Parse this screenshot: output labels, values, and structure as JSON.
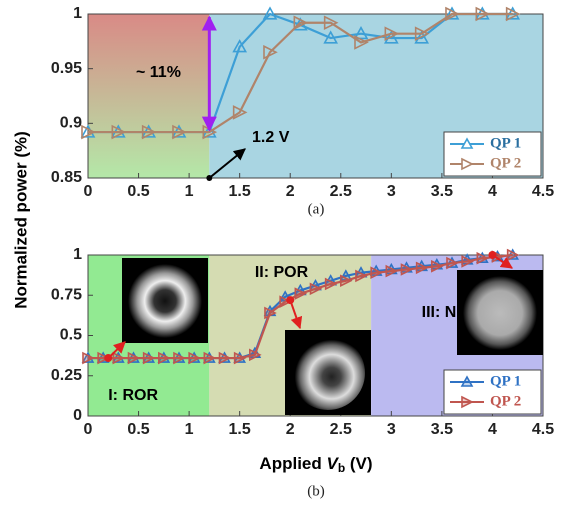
{
  "chart_data": [
    {
      "type": "line",
      "caption": "(a)",
      "xlim": [
        0,
        4.5
      ],
      "xticks": [
        0,
        0.5,
        1,
        1.5,
        2,
        2.5,
        3,
        3.5,
        4,
        4.5
      ],
      "ylim": [
        0.85,
        1
      ],
      "yticks": [
        0.85,
        0.9,
        0.95,
        1
      ],
      "regions": [
        {
          "range": [
            0,
            1.2
          ],
          "gradient": [
            "#d98a86",
            "#b4e8a8"
          ]
        },
        {
          "range": [
            1.2,
            4.5
          ],
          "color": "#a9d5e2"
        }
      ],
      "annotations": [
        "~ 11%",
        "1.2 V"
      ],
      "legend": "lower right",
      "series": [
        {
          "name": "QP 1",
          "color": "#3d9fd6",
          "marker": "triangle-up",
          "x": [
            0,
            0.3,
            0.6,
            0.9,
            1.2,
            1.5,
            1.8,
            2.1,
            2.4,
            2.7,
            3.0,
            3.3,
            3.6,
            3.9,
            4.2
          ],
          "values": [
            0.892,
            0.892,
            0.892,
            0.892,
            0.892,
            0.97,
            1.0,
            0.99,
            0.978,
            0.982,
            0.978,
            0.978,
            1.0,
            1.0,
            1.0
          ]
        },
        {
          "name": "QP 2",
          "color": "#b0846a",
          "marker": "triangle-right",
          "x": [
            0,
            0.3,
            0.6,
            0.9,
            1.2,
            1.5,
            1.8,
            2.1,
            2.4,
            2.7,
            3.0,
            3.3,
            3.6,
            3.9,
            4.2
          ],
          "values": [
            0.892,
            0.892,
            0.892,
            0.892,
            0.892,
            0.91,
            0.965,
            0.992,
            0.992,
            0.974,
            0.982,
            0.982,
            1.0,
            1.0,
            1.0
          ]
        }
      ]
    },
    {
      "type": "line",
      "caption": "(b)",
      "xlim": [
        0,
        4.5
      ],
      "xticks": [
        0,
        0.5,
        1,
        1.5,
        2,
        2.5,
        3,
        3.5,
        4,
        4.5
      ],
      "ylim": [
        0,
        1
      ],
      "yticks": [
        0,
        0.25,
        0.5,
        0.75,
        1
      ],
      "regions": [
        {
          "range": [
            0,
            1.2
          ],
          "color": "#92ea92",
          "label": "I: ROR"
        },
        {
          "range": [
            1.2,
            2.8
          ],
          "color": "#d5dcb2",
          "label": "II: POR"
        },
        {
          "range": [
            2.8,
            4.5
          ],
          "color": "#bbbaf0",
          "label": "III: NOR"
        }
      ],
      "legend": "lower right",
      "series": [
        {
          "name": "QP 1",
          "color": "#2f72c4",
          "marker": "triangle-up",
          "x": [
            0,
            0.15,
            0.3,
            0.45,
            0.6,
            0.75,
            0.9,
            1.05,
            1.2,
            1.35,
            1.5,
            1.65,
            1.8,
            1.95,
            2.1,
            2.25,
            2.4,
            2.55,
            2.7,
            2.85,
            3.0,
            3.15,
            3.3,
            3.45,
            3.6,
            3.75,
            3.9,
            4.05,
            4.2
          ],
          "values": [
            0.36,
            0.36,
            0.36,
            0.36,
            0.36,
            0.36,
            0.36,
            0.36,
            0.36,
            0.36,
            0.36,
            0.39,
            0.65,
            0.74,
            0.78,
            0.81,
            0.84,
            0.87,
            0.89,
            0.9,
            0.91,
            0.92,
            0.93,
            0.94,
            0.95,
            0.97,
            0.98,
            0.99,
            1.0
          ]
        },
        {
          "name": "QP 2",
          "color": "#c0564f",
          "marker": "triangle-right",
          "x": [
            0,
            0.15,
            0.3,
            0.45,
            0.6,
            0.75,
            0.9,
            1.05,
            1.2,
            1.35,
            1.5,
            1.65,
            1.8,
            1.95,
            2.1,
            2.25,
            2.4,
            2.55,
            2.7,
            2.85,
            3.0,
            3.15,
            3.3,
            3.45,
            3.6,
            3.75,
            3.9,
            4.05,
            4.2
          ],
          "values": [
            0.36,
            0.36,
            0.36,
            0.36,
            0.36,
            0.36,
            0.36,
            0.36,
            0.36,
            0.36,
            0.36,
            0.38,
            0.64,
            0.71,
            0.76,
            0.79,
            0.82,
            0.84,
            0.87,
            0.89,
            0.9,
            0.91,
            0.92,
            0.93,
            0.95,
            0.96,
            0.98,
            0.99,
            1.0
          ]
        }
      ]
    }
  ],
  "y_label": "Normalized power (%)",
  "x_label_parts": [
    "Applied ",
    "V",
    "b",
    " (V)"
  ]
}
